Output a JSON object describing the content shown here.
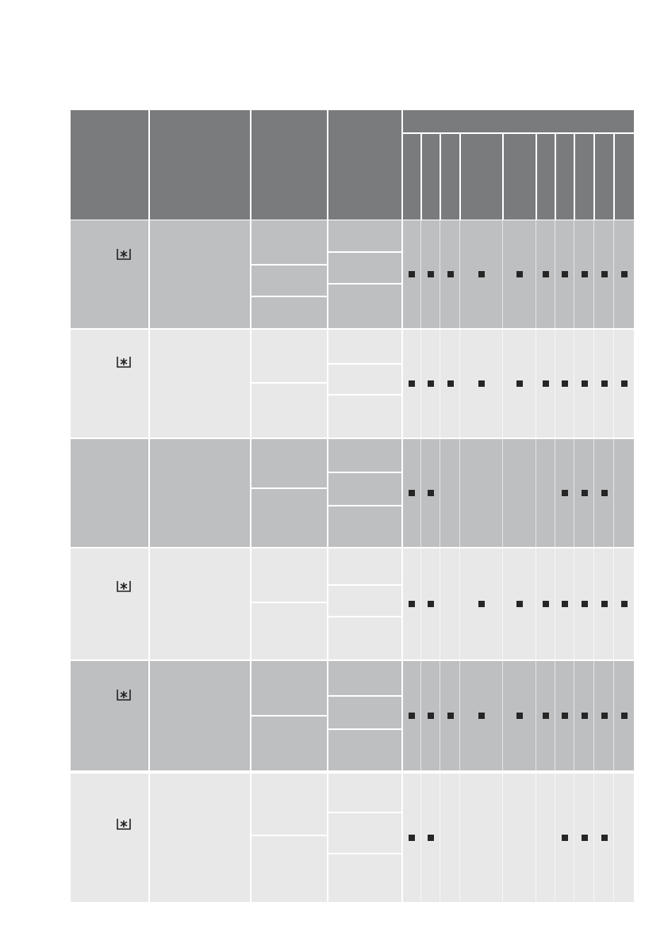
{
  "colors": {
    "header": "#7a7b7d",
    "row_dark": "#bebfc1",
    "row_light": "#e8e8e9",
    "marker": "#262626"
  },
  "rows": [
    {
      "shade": "dark",
      "icon": "freezer-star-icon",
      "marks": [
        1,
        1,
        1,
        1,
        1,
        1,
        1,
        1,
        1,
        1
      ]
    },
    {
      "shade": "light",
      "icon": "freezer-star-icon",
      "marks": [
        1,
        1,
        1,
        1,
        1,
        1,
        1,
        1,
        1,
        1
      ]
    },
    {
      "shade": "dark",
      "icon": null,
      "marks": [
        1,
        1,
        0,
        0,
        0,
        0,
        1,
        1,
        1,
        0
      ]
    },
    {
      "shade": "light",
      "icon": "freezer-star-icon",
      "marks": [
        1,
        1,
        0,
        1,
        1,
        1,
        1,
        1,
        1,
        1
      ]
    },
    {
      "shade": "dark",
      "icon": "freezer-star-icon",
      "marks": [
        1,
        1,
        1,
        1,
        1,
        1,
        1,
        1,
        1,
        1
      ]
    },
    {
      "shade": "light",
      "icon": "freezer-star-icon",
      "marks": [
        1,
        1,
        0,
        0,
        0,
        0,
        1,
        1,
        1,
        0
      ]
    }
  ]
}
